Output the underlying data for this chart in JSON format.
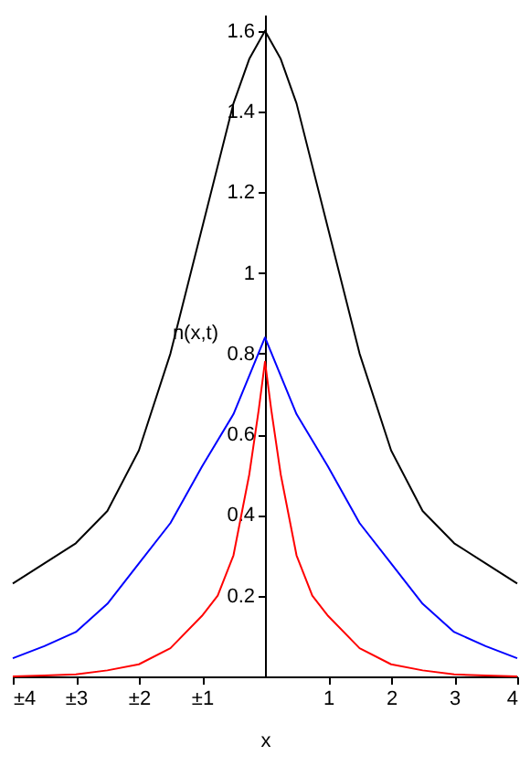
{
  "chart_data": {
    "type": "line",
    "xlabel": "x",
    "ylabel": "n(x,t)",
    "xlim": [
      -4,
      4
    ],
    "ylim": [
      0,
      1.64
    ],
    "xticks": [
      {
        "value": -4,
        "label": "±4"
      },
      {
        "value": -3,
        "label": "±3"
      },
      {
        "value": -2,
        "label": "±2"
      },
      {
        "value": -1,
        "label": "±1"
      },
      1,
      2,
      3,
      4
    ],
    "yticks": [
      0.2,
      0.4,
      0.6,
      0.8,
      1,
      1.2,
      1.4,
      1.6
    ],
    "grid": false,
    "legend": false,
    "marker": "none",
    "line_style": "solid",
    "series": [
      {
        "color": "#000000",
        "x": [
          -4,
          -3.5,
          -3,
          -2.5,
          -2,
          -1.5,
          -1,
          -0.5,
          -0.25,
          0,
          0.25,
          0.5,
          1,
          1.5,
          2,
          2.5,
          3,
          3.5,
          4
        ],
        "values": [
          0.23,
          0.28,
          0.33,
          0.41,
          0.56,
          0.8,
          1.11,
          1.42,
          1.53,
          1.6,
          1.53,
          1.42,
          1.11,
          0.8,
          0.56,
          0.41,
          0.33,
          0.28,
          0.23
        ]
      },
      {
        "color": "#0000ff",
        "x": [
          -4,
          -3.5,
          -3,
          -2.5,
          -2,
          -1.5,
          -1,
          -0.5,
          0,
          0.5,
          1,
          1.5,
          2,
          2.5,
          3,
          3.5,
          4
        ],
        "values": [
          0.045,
          0.075,
          0.11,
          0.18,
          0.28,
          0.38,
          0.52,
          0.65,
          0.84,
          0.65,
          0.52,
          0.38,
          0.28,
          0.18,
          0.11,
          0.075,
          0.045
        ]
      },
      {
        "color": "#ff0000",
        "x": [
          -4,
          -3.5,
          -3,
          -2.5,
          -2,
          -1.5,
          -1,
          -0.75,
          -0.5,
          -0.25,
          -0.1,
          0,
          0.1,
          0.25,
          0.5,
          0.75,
          1,
          1.5,
          2,
          2.5,
          3,
          3.5,
          4
        ],
        "values": [
          0,
          0.002,
          0.005,
          0.015,
          0.03,
          0.07,
          0.15,
          0.2,
          0.3,
          0.5,
          0.66,
          0.78,
          0.66,
          0.5,
          0.3,
          0.2,
          0.15,
          0.07,
          0.03,
          0.015,
          0.005,
          0.002,
          0
        ]
      }
    ]
  }
}
